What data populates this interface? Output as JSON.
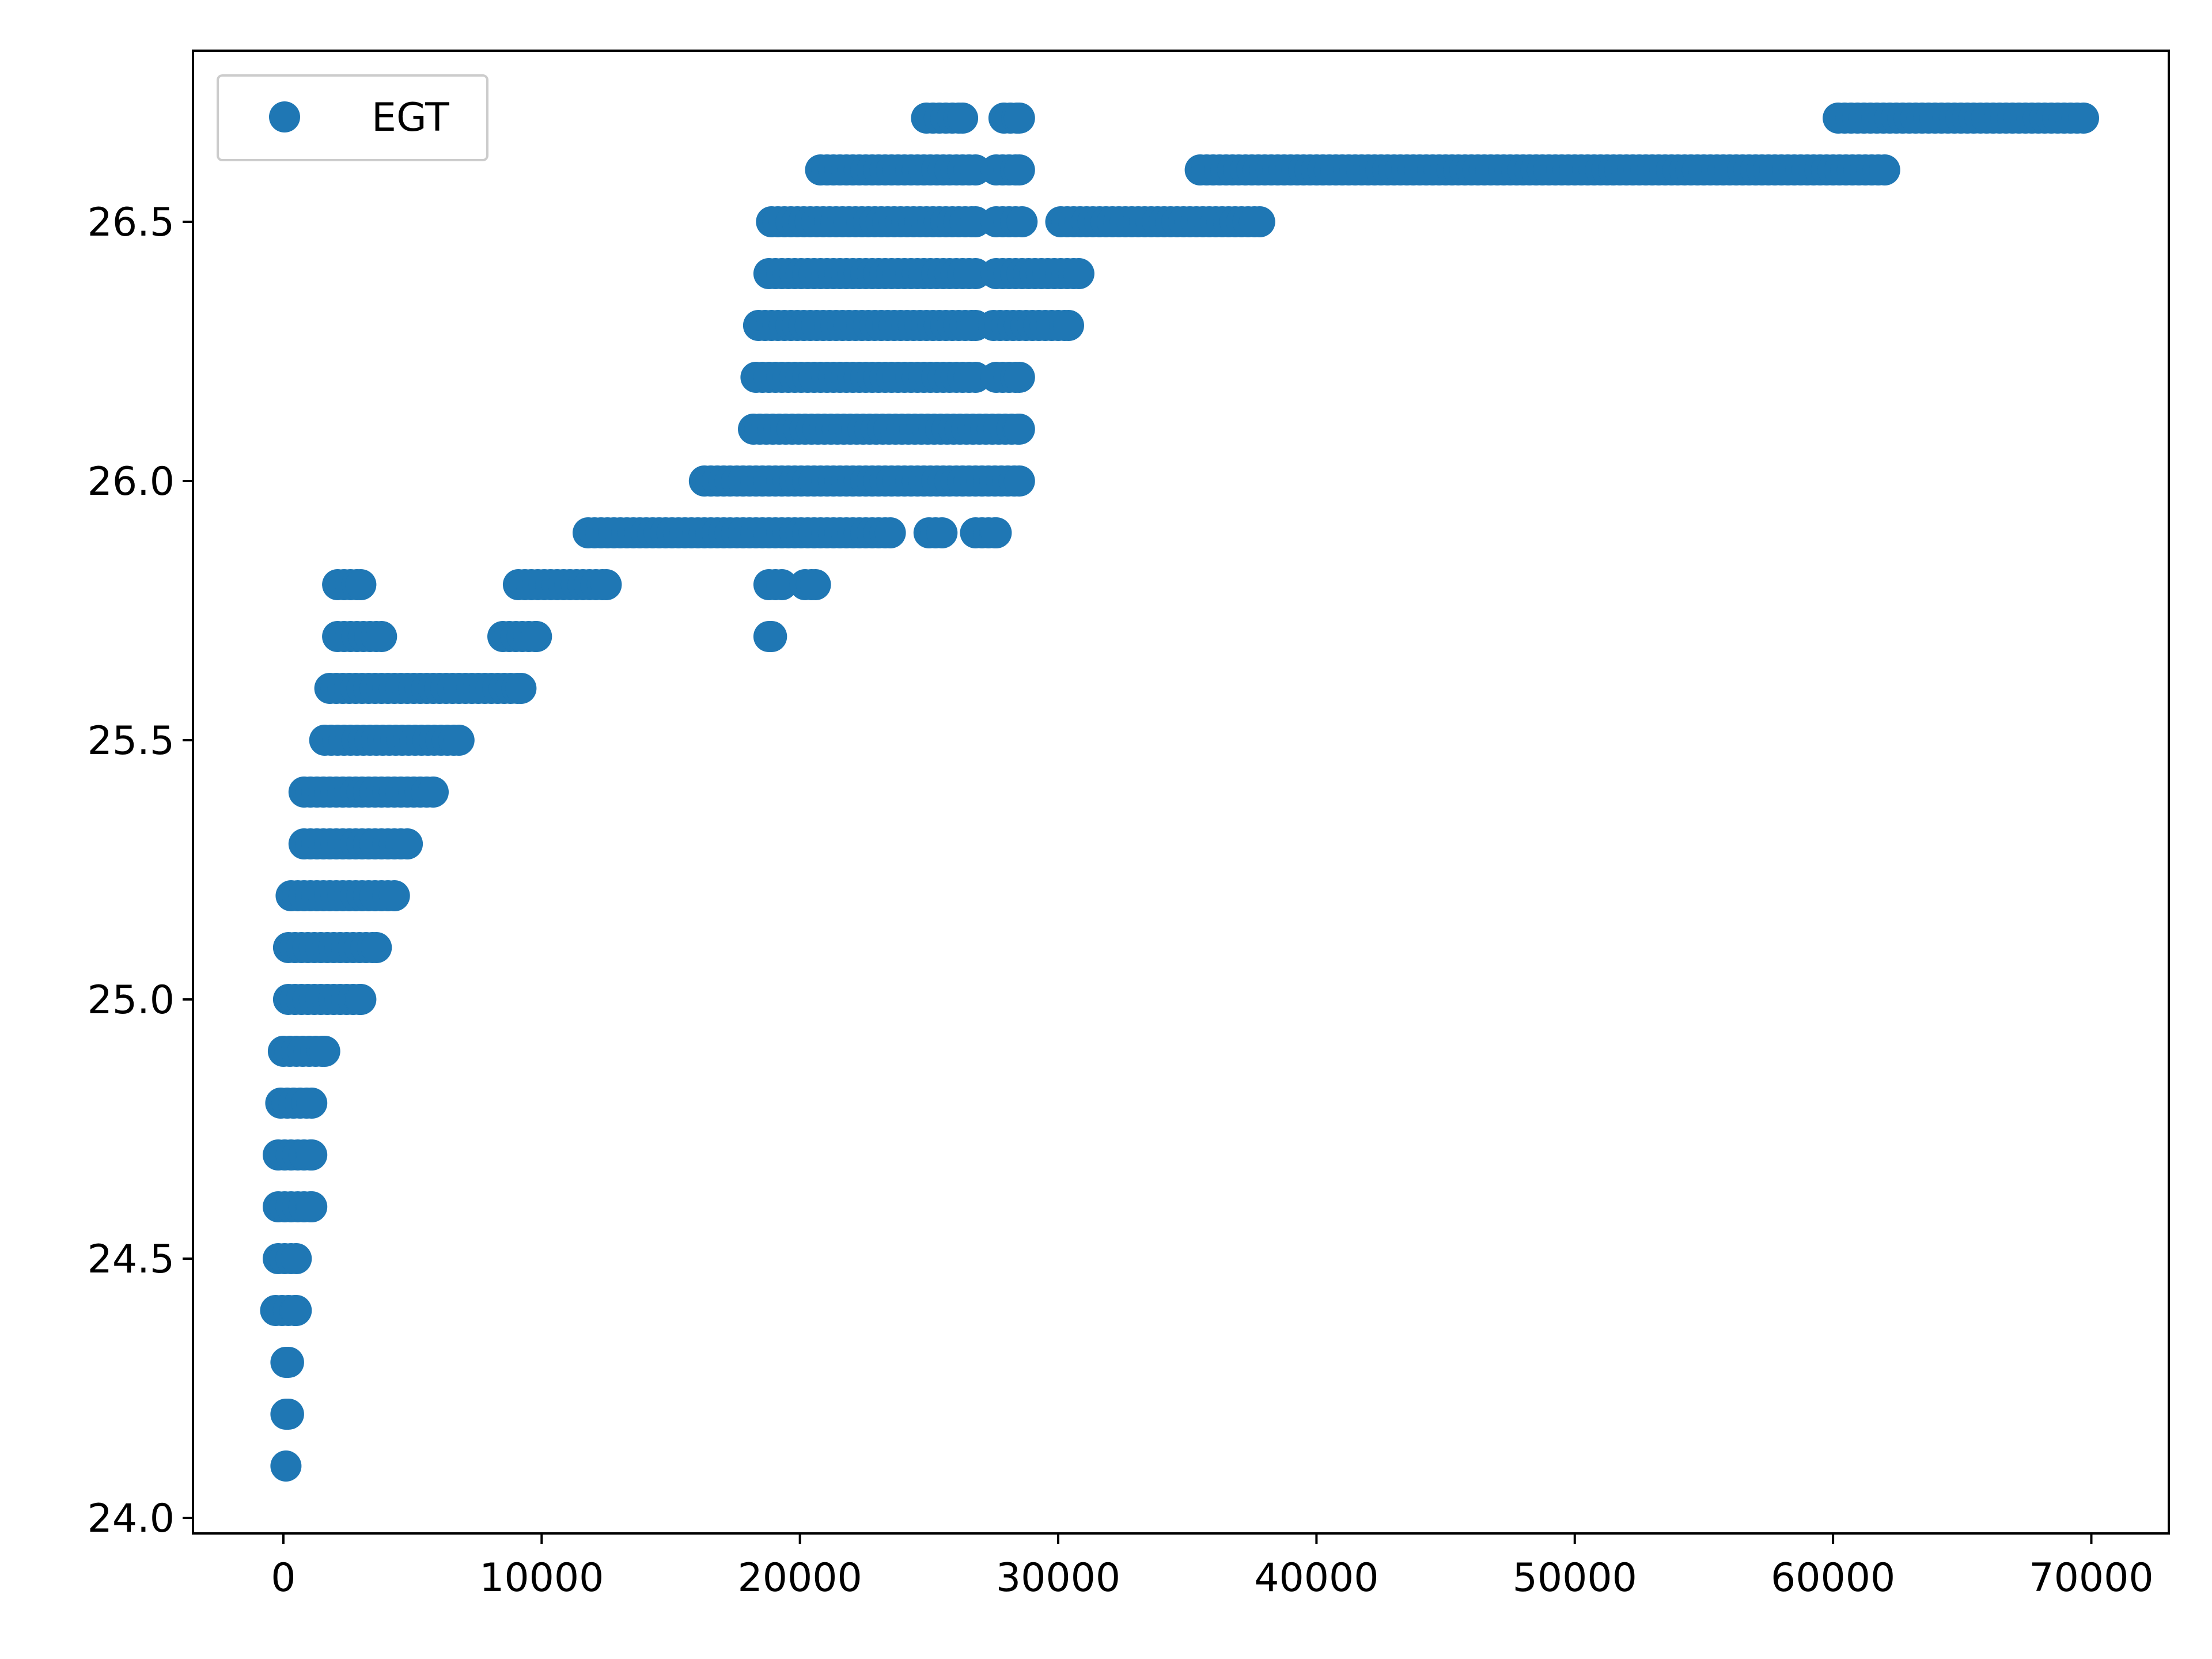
{
  "chart_data": {
    "type": "scatter",
    "title": "",
    "xlabel": "",
    "ylabel": "",
    "xlim": [
      -3500,
      73000
    ],
    "ylim": [
      23.97,
      26.83
    ],
    "x_ticks": [
      0,
      10000,
      20000,
      30000,
      40000,
      50000,
      60000,
      70000
    ],
    "x_tick_labels": [
      "0",
      "10000",
      "20000",
      "30000",
      "40000",
      "50000",
      "60000",
      "70000"
    ],
    "y_ticks": [
      24.0,
      24.5,
      25.0,
      25.5,
      26.0,
      26.5
    ],
    "y_tick_labels": [
      "24.0",
      "24.5",
      "25.0",
      "25.5",
      "26.0",
      "26.5"
    ],
    "grid": false,
    "legend": {
      "position": "upper-left",
      "entries": [
        "EGT"
      ]
    },
    "series": [
      {
        "name": "EGT",
        "color": "#1f77b4",
        "marker": "circle",
        "runs": [
          {
            "y": 24.1,
            "x_start": 100,
            "x_end": 100
          },
          {
            "y": 24.2,
            "x_start": 100,
            "x_end": 200
          },
          {
            "y": 24.3,
            "x_start": 100,
            "x_end": 200
          },
          {
            "y": 24.4,
            "x_start": -300,
            "x_end": 500
          },
          {
            "y": 24.5,
            "x_start": -200,
            "x_end": 500
          },
          {
            "y": 24.6,
            "x_start": -200,
            "x_end": 1100
          },
          {
            "y": 24.7,
            "x_start": -200,
            "x_end": 1100
          },
          {
            "y": 24.8,
            "x_start": -100,
            "x_end": 1100
          },
          {
            "y": 24.9,
            "x_start": 0,
            "x_end": 1600
          },
          {
            "y": 25.0,
            "x_start": 200,
            "x_end": 3000
          },
          {
            "y": 25.1,
            "x_start": 200,
            "x_end": 3600
          },
          {
            "y": 25.2,
            "x_start": 300,
            "x_end": 4300
          },
          {
            "y": 25.3,
            "x_start": 800,
            "x_end": 4800
          },
          {
            "y": 25.4,
            "x_start": 800,
            "x_end": 5800
          },
          {
            "y": 25.5,
            "x_start": 1600,
            "x_end": 6800
          },
          {
            "y": 25.6,
            "x_start": 1800,
            "x_end": 9200
          },
          {
            "y": 25.7,
            "x_start": 2100,
            "x_end": 3800
          },
          {
            "y": 25.7,
            "x_start": 8500,
            "x_end": 9800
          },
          {
            "y": 25.7,
            "x_start": 18800,
            "x_end": 18900
          },
          {
            "y": 25.8,
            "x_start": 2100,
            "x_end": 3000
          },
          {
            "y": 25.8,
            "x_start": 9100,
            "x_end": 12500
          },
          {
            "y": 25.8,
            "x_start": 18800,
            "x_end": 19300
          },
          {
            "y": 25.8,
            "x_start": 20200,
            "x_end": 20600
          },
          {
            "y": 25.9,
            "x_start": 11800,
            "x_end": 23500
          },
          {
            "y": 25.9,
            "x_start": 25000,
            "x_end": 25500
          },
          {
            "y": 25.9,
            "x_start": 26800,
            "x_end": 27600
          },
          {
            "y": 26.0,
            "x_start": 16300,
            "x_end": 28500
          },
          {
            "y": 26.1,
            "x_start": 18200,
            "x_end": 28500
          },
          {
            "y": 26.2,
            "x_start": 18300,
            "x_end": 26800
          },
          {
            "y": 26.2,
            "x_start": 27600,
            "x_end": 28500
          },
          {
            "y": 26.3,
            "x_start": 18400,
            "x_end": 26800
          },
          {
            "y": 26.3,
            "x_start": 27500,
            "x_end": 30400
          },
          {
            "y": 26.4,
            "x_start": 18800,
            "x_end": 26800
          },
          {
            "y": 26.4,
            "x_start": 27600,
            "x_end": 30800
          },
          {
            "y": 26.5,
            "x_start": 18900,
            "x_end": 26800
          },
          {
            "y": 26.5,
            "x_start": 27600,
            "x_end": 28600
          },
          {
            "y": 26.5,
            "x_start": 30100,
            "x_end": 37800
          },
          {
            "y": 26.6,
            "x_start": 20800,
            "x_end": 26800
          },
          {
            "y": 26.6,
            "x_start": 27600,
            "x_end": 28500
          },
          {
            "y": 26.6,
            "x_start": 35500,
            "x_end": 62000
          },
          {
            "y": 26.7,
            "x_start": 24900,
            "x_end": 26300
          },
          {
            "y": 26.7,
            "x_start": 27900,
            "x_end": 28500
          },
          {
            "y": 26.7,
            "x_start": 60200,
            "x_end": 69700
          }
        ]
      }
    ]
  }
}
